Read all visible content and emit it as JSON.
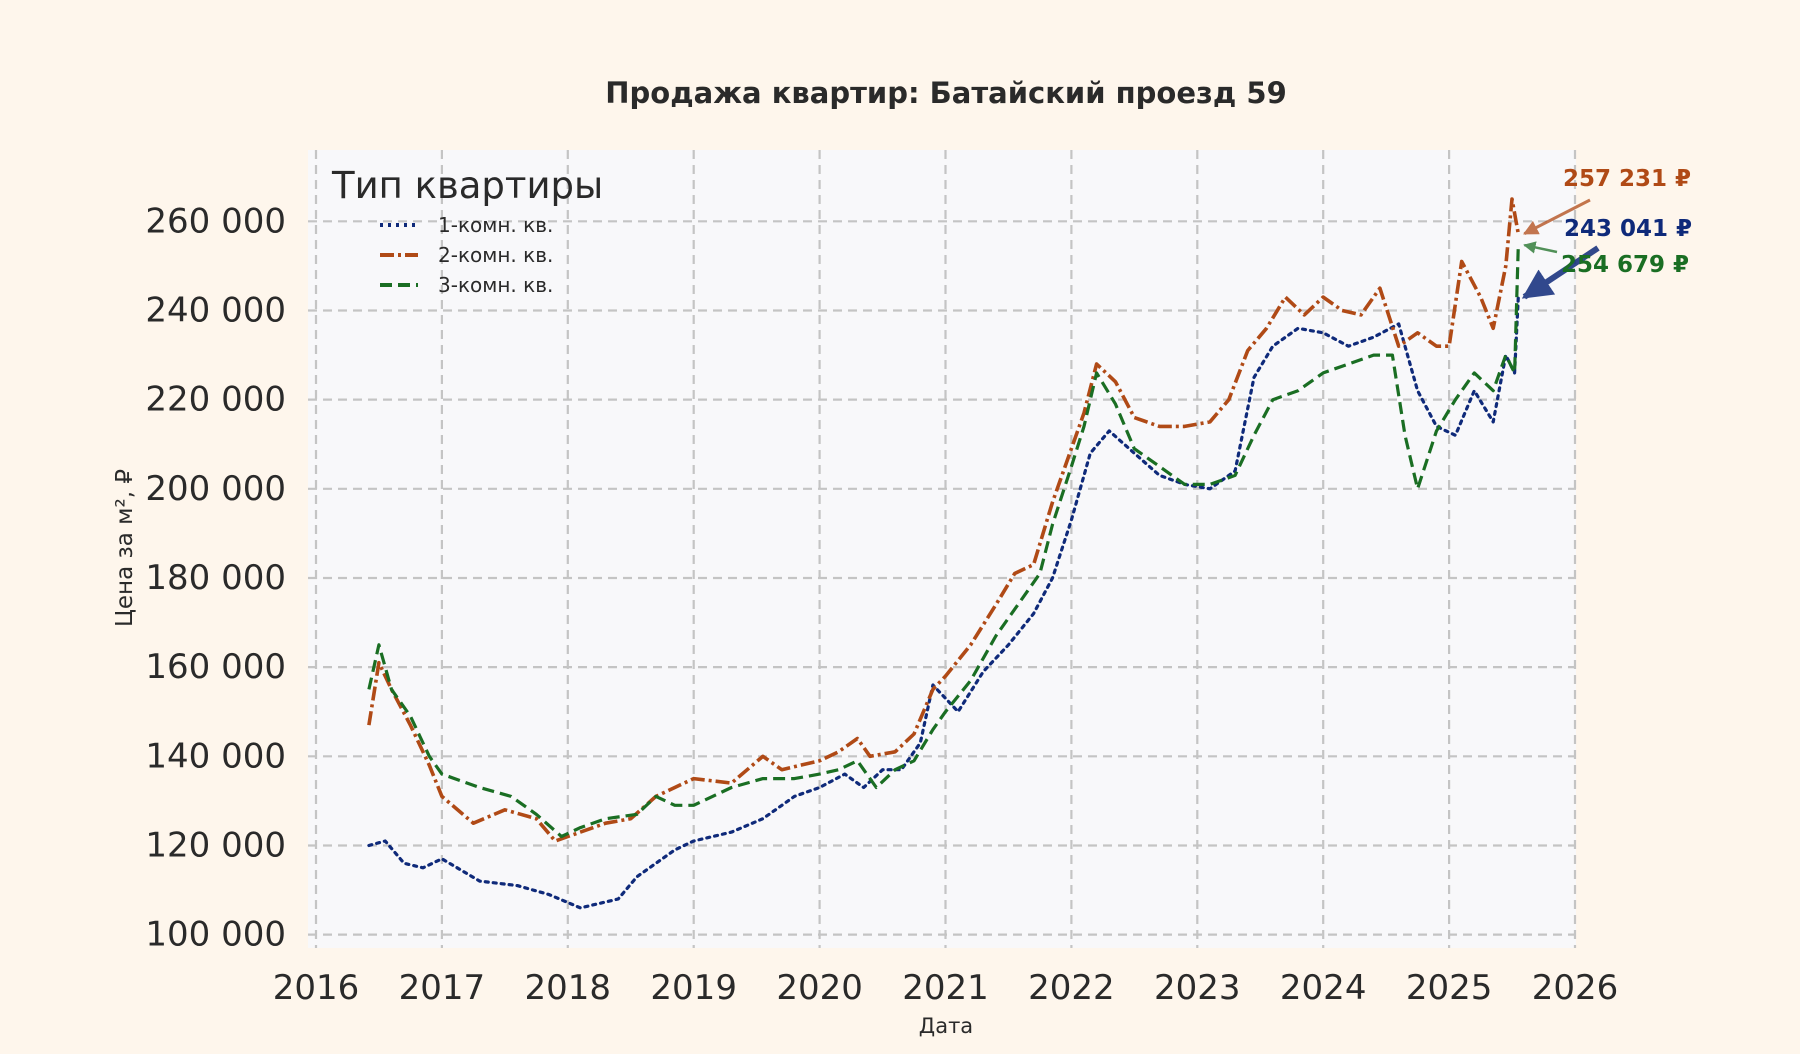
{
  "chart_data": {
    "type": "line",
    "title": "Продажа квартир: Батайский проезд 59",
    "xlabel": "Дата",
    "ylabel": "Цена за м², ₽",
    "xlim": [
      2016,
      2026
    ],
    "ylim": [
      97000,
      276000
    ],
    "x_ticks": [
      "2016",
      "2017",
      "2018",
      "2019",
      "2020",
      "2021",
      "2022",
      "2023",
      "2024",
      "2025",
      "2026"
    ],
    "y_ticks": [
      "100 000",
      "120 000",
      "140 000",
      "160 000",
      "180 000",
      "200 000",
      "220 000",
      "240 000",
      "260 000"
    ],
    "y_tick_values": [
      100000,
      120000,
      140000,
      160000,
      180000,
      200000,
      220000,
      240000,
      260000
    ],
    "grid": true,
    "legend": {
      "title": "Тип квартиры",
      "placement": "top-left"
    },
    "series": [
      {
        "name": "1-комн. кв.",
        "color": "#0f2a7a",
        "style": "dotted",
        "end_label": "243 041 ₽",
        "x": [
          2016.42,
          2016.55,
          2016.7,
          2016.85,
          2017.0,
          2017.3,
          2017.6,
          2017.85,
          2018.1,
          2018.4,
          2018.55,
          2018.7,
          2018.85,
          2019.0,
          2019.3,
          2019.55,
          2019.8,
          2020.0,
          2020.2,
          2020.35,
          2020.5,
          2020.65,
          2020.8,
          2020.9,
          2021.1,
          2021.3,
          2021.5,
          2021.7,
          2021.85,
          2022.0,
          2022.15,
          2022.3,
          2022.5,
          2022.7,
          2022.9,
          2023.1,
          2023.3,
          2023.45,
          2023.6,
          2023.8,
          2024.0,
          2024.2,
          2024.4,
          2024.6,
          2024.75,
          2024.9,
          2025.05,
          2025.2,
          2025.35,
          2025.45,
          2025.52,
          2025.55
        ],
        "values": [
          120000,
          121000,
          116000,
          115000,
          117000,
          112000,
          111000,
          109000,
          106000,
          108000,
          113000,
          116000,
          119000,
          121000,
          123000,
          126000,
          131000,
          133000,
          136000,
          133000,
          137000,
          137000,
          143000,
          156000,
          150000,
          159000,
          165000,
          172000,
          180000,
          193000,
          208000,
          213000,
          208000,
          203000,
          201000,
          200000,
          204000,
          225000,
          232000,
          236000,
          235000,
          232000,
          234000,
          237000,
          222000,
          214000,
          212000,
          222000,
          215000,
          230000,
          226000,
          243041
        ]
      },
      {
        "name": "2-комн. кв.",
        "color": "#b04a16",
        "style": "dashdot",
        "end_label": "257 231 ₽",
        "x": [
          2016.42,
          2016.5,
          2016.6,
          2016.75,
          2016.9,
          2017.0,
          2017.25,
          2017.5,
          2017.75,
          2017.9,
          2018.1,
          2018.3,
          2018.5,
          2018.7,
          2018.85,
          2019.0,
          2019.3,
          2019.55,
          2019.7,
          2019.85,
          2020.0,
          2020.15,
          2020.3,
          2020.4,
          2020.6,
          2020.75,
          2020.9,
          2021.0,
          2021.2,
          2021.4,
          2021.55,
          2021.7,
          2021.85,
          2021.95,
          2022.1,
          2022.2,
          2022.35,
          2022.5,
          2022.7,
          2022.9,
          2023.1,
          2023.25,
          2023.4,
          2023.55,
          2023.7,
          2023.85,
          2024.0,
          2024.15,
          2024.3,
          2024.45,
          2024.6,
          2024.75,
          2024.9,
          2025.0,
          2025.1,
          2025.25,
          2025.35,
          2025.45,
          2025.5,
          2025.55
        ],
        "values": [
          147000,
          161000,
          155000,
          147000,
          138000,
          131000,
          125000,
          128000,
          126000,
          121000,
          123000,
          125000,
          126000,
          131000,
          133000,
          135000,
          134000,
          140000,
          137000,
          138000,
          139000,
          141000,
          144000,
          140000,
          141000,
          145000,
          155000,
          158000,
          165000,
          174000,
          181000,
          183000,
          197000,
          205000,
          217000,
          228000,
          224000,
          216000,
          214000,
          214000,
          215000,
          220000,
          231000,
          236000,
          243000,
          239000,
          243000,
          240000,
          239000,
          245000,
          232000,
          235000,
          232000,
          232000,
          251000,
          243000,
          236000,
          250000,
          265000,
          257231
        ]
      },
      {
        "name": "3-комн. кв.",
        "color": "#1a6e23",
        "style": "dashed",
        "end_label": "254 679 ₽",
        "x": [
          2016.42,
          2016.5,
          2016.6,
          2016.75,
          2016.9,
          2017.0,
          2017.3,
          2017.55,
          2017.75,
          2017.95,
          2018.1,
          2018.3,
          2018.55,
          2018.7,
          2018.85,
          2019.0,
          2019.3,
          2019.55,
          2019.8,
          2020.0,
          2020.15,
          2020.3,
          2020.45,
          2020.6,
          2020.75,
          2020.9,
          2021.0,
          2021.2,
          2021.4,
          2021.6,
          2021.75,
          2021.85,
          2022.0,
          2022.1,
          2022.2,
          2022.35,
          2022.5,
          2022.7,
          2022.9,
          2023.1,
          2023.3,
          2023.45,
          2023.6,
          2023.8,
          2024.0,
          2024.2,
          2024.4,
          2024.55,
          2024.65,
          2024.75,
          2024.9,
          2025.05,
          2025.2,
          2025.35,
          2025.45,
          2025.52,
          2025.55
        ],
        "values": [
          155000,
          165000,
          155000,
          149000,
          140000,
          136000,
          133000,
          131000,
          127000,
          122000,
          124000,
          126000,
          127000,
          131000,
          129000,
          129000,
          133000,
          135000,
          135000,
          136000,
          137000,
          139000,
          133000,
          137000,
          139000,
          146000,
          150000,
          157000,
          167000,
          175000,
          181000,
          192000,
          205000,
          214000,
          226000,
          219000,
          209000,
          205000,
          201000,
          201000,
          203000,
          212000,
          220000,
          222000,
          226000,
          228000,
          230000,
          230000,
          212000,
          200000,
          213000,
          220000,
          226000,
          222000,
          230000,
          226000,
          254679
        ]
      }
    ]
  }
}
